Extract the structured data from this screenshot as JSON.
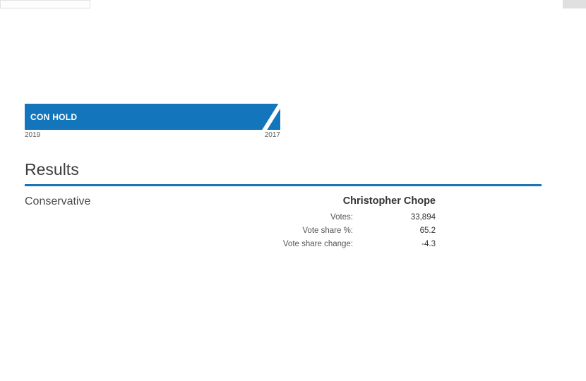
{
  "colors": {
    "banner_blue": "#1376bc",
    "rule_blue": "#1a72b8",
    "decor_grey": "#e0e0e0"
  },
  "banner": {
    "label": "CON HOLD",
    "year_left": "2019",
    "year_right": "2017"
  },
  "results": {
    "title": "Results"
  },
  "party": {
    "name": "Conservative"
  },
  "candidate": {
    "name": "Christopher Chope",
    "stats": [
      {
        "label": "Votes:",
        "value": "33,894"
      },
      {
        "label": "Vote share %:",
        "value": "65.2"
      },
      {
        "label": "Vote share change:",
        "value": "-4.3"
      }
    ]
  }
}
